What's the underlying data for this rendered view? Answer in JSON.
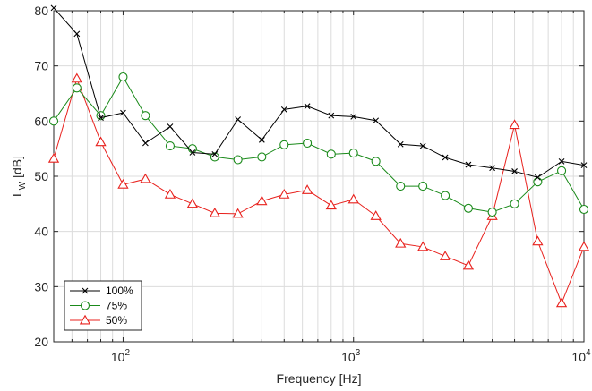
{
  "chart_data": {
    "type": "line",
    "xscale": "log",
    "xlim": [
      50,
      10000
    ],
    "ylim": [
      20,
      80
    ],
    "xlabel": "Frequency [Hz]",
    "ylabel_main": "L",
    "ylabel_sub": "W",
    "ylabel_unit": " [dB]",
    "xticks": [
      {
        "value": 100,
        "base": "10",
        "exp": "2"
      },
      {
        "value": 1000,
        "base": "10",
        "exp": "3"
      },
      {
        "value": 10000,
        "base": "10",
        "exp": "4"
      }
    ],
    "yticks": [
      20,
      30,
      40,
      50,
      60,
      70,
      80
    ],
    "grid": true,
    "legend_position": "bottom-left",
    "x": [
      50,
      63,
      80,
      100,
      125,
      160,
      200,
      250,
      315,
      400,
      500,
      630,
      800,
      1000,
      1250,
      1600,
      2000,
      2500,
      3150,
      4000,
      5000,
      6300,
      8000,
      10000
    ],
    "series": [
      {
        "name": "100%",
        "color": "#000000",
        "marker": "x",
        "values": [
          80.5,
          75.8,
          60.6,
          61.5,
          56.0,
          59.0,
          54.3,
          54.0,
          60.3,
          56.6,
          62.1,
          62.7,
          61.0,
          60.8,
          60.1,
          55.8,
          55.5,
          53.4,
          52.1,
          51.5,
          50.9,
          49.8,
          52.7,
          52.0
        ]
      },
      {
        "name": "75%",
        "color": "#1a8a1a",
        "marker": "o",
        "values": [
          60.0,
          66.0,
          61.0,
          68.0,
          61.0,
          55.5,
          55.0,
          53.5,
          53.0,
          53.5,
          55.7,
          56.0,
          54.0,
          54.2,
          52.7,
          48.2,
          48.2,
          46.5,
          44.2,
          43.5,
          45.0,
          49.0,
          51.0,
          44.0
        ]
      },
      {
        "name": "50%",
        "color": "#e8211d",
        "marker": "triangle",
        "values": [
          53.2,
          67.7,
          56.2,
          48.5,
          49.5,
          46.7,
          45.0,
          43.3,
          43.2,
          45.5,
          46.7,
          47.5,
          44.7,
          45.8,
          42.8,
          37.8,
          37.2,
          35.5,
          33.8,
          42.8,
          59.3,
          38.2,
          27.0,
          37.2
        ]
      }
    ]
  }
}
